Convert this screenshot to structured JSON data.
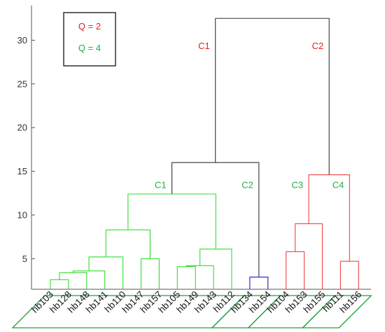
{
  "chart_data": {
    "type": "dendrogram",
    "title": "",
    "xlabel": "",
    "ylabel": "",
    "ylim": [
      1.5,
      33
    ],
    "yticks": [
      5,
      10,
      15,
      20,
      25,
      30
    ],
    "ytick_labels": [
      "5",
      "10",
      "15",
      "20",
      "25",
      "30"
    ],
    "leaves": [
      "hb103",
      "hb128",
      "hb148",
      "hb141",
      "hb110",
      "hb147",
      "hb157",
      "hb105",
      "hb149",
      "hb143",
      "hb112",
      "hb134",
      "hb154",
      "hb104",
      "hb153",
      "hb155",
      "hb111",
      "hb156"
    ],
    "links": [
      {
        "id": "m1",
        "left": "hb103",
        "right": "hb128",
        "height": 2.6,
        "color": "#33dd33"
      },
      {
        "id": "m2",
        "left": "m1",
        "right": "hb148",
        "height": 3.4,
        "color": "#33dd33"
      },
      {
        "id": "m3",
        "left": "m2",
        "right": "hb141",
        "height": 3.6,
        "color": "#33dd33"
      },
      {
        "id": "m4",
        "left": "m3",
        "right": "hb110",
        "height": 5.2,
        "color": "#33dd33"
      },
      {
        "id": "m5",
        "left": "hb147",
        "right": "hb157",
        "height": 5.0,
        "color": "#33dd33"
      },
      {
        "id": "m6",
        "left": "m4",
        "right": "m5",
        "height": 8.3,
        "color": "#33dd33"
      },
      {
        "id": "m7",
        "left": "hb105",
        "right": "hb149",
        "height": 4.1,
        "color": "#33dd33"
      },
      {
        "id": "m8",
        "left": "m7",
        "right": "hb143",
        "height": 4.2,
        "color": "#33dd33"
      },
      {
        "id": "m9",
        "left": "m8",
        "right": "hb112",
        "height": 6.1,
        "color": "#33dd33"
      },
      {
        "id": "m10",
        "left": "m6",
        "right": "m9",
        "height": 12.4,
        "color": "#33dd33"
      },
      {
        "id": "m11",
        "left": "hb134",
        "right": "hb154",
        "height": 2.9,
        "color": "#1a1adb"
      },
      {
        "id": "m12",
        "left": "m10",
        "right": "m11",
        "height": 16.0,
        "color": "#333333"
      },
      {
        "id": "m13",
        "left": "hb104",
        "right": "hb153",
        "height": 5.8,
        "color": "#ee4444"
      },
      {
        "id": "m14",
        "left": "m13",
        "right": "hb155",
        "height": 9.0,
        "color": "#ee4444"
      },
      {
        "id": "m15",
        "left": "hb111",
        "right": "hb156",
        "height": 4.7,
        "color": "#ee4444"
      },
      {
        "id": "m16",
        "left": "m14",
        "right": "m15",
        "height": 14.6,
        "color": "#ee4444"
      },
      {
        "id": "m17",
        "left": "m12",
        "right": "m16",
        "height": 32.5,
        "color": "#333333"
      }
    ],
    "cluster_labels": [
      {
        "text": "C1",
        "color": "#e02020",
        "anchor": "m17",
        "side": "left",
        "y": 29.3
      },
      {
        "text": "C2",
        "color": "#e02020",
        "anchor": "m17",
        "side": "right",
        "y": 29.3
      },
      {
        "text": "C1",
        "color": "#20b040",
        "anchor": "m12",
        "side": "left",
        "y": 13.4
      },
      {
        "text": "C2",
        "color": "#20b040",
        "anchor": "m12",
        "side": "right",
        "y": 13.4
      },
      {
        "text": "C3",
        "color": "#20b040",
        "anchor": "m16",
        "side": "left",
        "y": 13.4
      },
      {
        "text": "C4",
        "color": "#20b040",
        "anchor": "m16",
        "side": "right",
        "y": 13.4
      }
    ],
    "leaf_groups": [
      {
        "from": 0,
        "to": 10,
        "color": "#20a040"
      },
      {
        "from": 11,
        "to": 12,
        "color": "#20a040"
      },
      {
        "from": 13,
        "to": 15,
        "color": "#20a040"
      },
      {
        "from": 16,
        "to": 17,
        "color": "#20a040"
      }
    ],
    "legend": [
      {
        "text": "Q = 2",
        "color": "#e02020"
      },
      {
        "text": "Q = 4",
        "color": "#20b040"
      }
    ],
    "legend_position": "top-left",
    "grid": false
  }
}
